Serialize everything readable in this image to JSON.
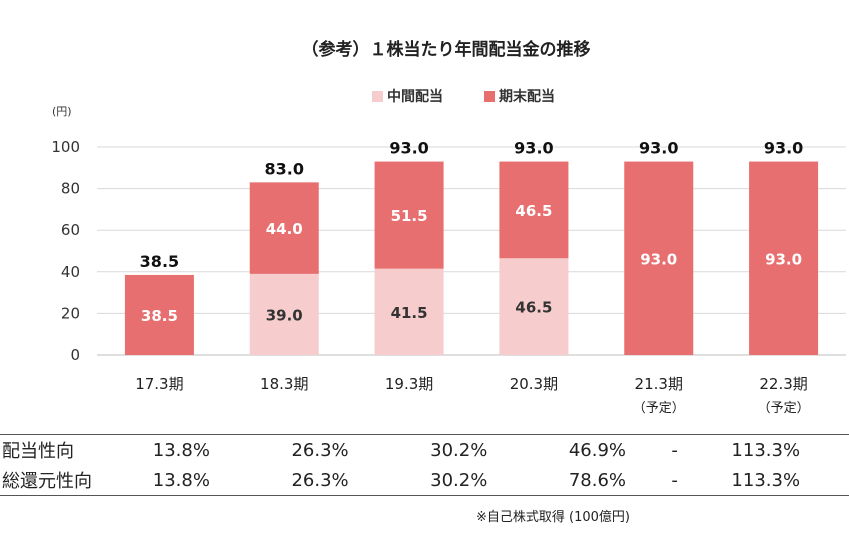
{
  "chart_data": {
    "type": "bar",
    "stacked": true,
    "title": "（参考）１株当たり年間配当金の推移",
    "unit": "(円)",
    "ylim": [
      0,
      100
    ],
    "yticks": [
      0,
      20,
      40,
      60,
      80,
      100
    ],
    "legend_position": "top",
    "categories": [
      "17.3期",
      "18.3期",
      "19.3期",
      "20.3期",
      "21.3期",
      "22.3期"
    ],
    "category_notes": [
      "",
      "",
      "",
      "",
      "（予定）",
      "（予定）"
    ],
    "series": [
      {
        "name": "中間配当",
        "color": "#f6cccc",
        "values": [
          0,
          39.0,
          41.5,
          46.5,
          0,
          0
        ],
        "labels": [
          "",
          "39.0",
          "41.5",
          "46.5",
          "",
          ""
        ]
      },
      {
        "name": "期末配当",
        "color": "#e86f6f",
        "values": [
          38.5,
          44.0,
          51.5,
          46.5,
          93.0,
          93.0
        ],
        "labels": [
          "38.5",
          "44.0",
          "51.5",
          "46.5",
          "93.0",
          "93.0"
        ]
      }
    ],
    "totals": [
      "38.5",
      "83.0",
      "93.0",
      "93.0",
      "93.0",
      "93.0"
    ]
  },
  "table": {
    "rows": [
      {
        "label": "配当性向",
        "values": [
          "13.8%",
          "26.3%",
          "30.2%",
          "46.9%",
          "-",
          "113.3%"
        ]
      },
      {
        "label": "総還元性向",
        "values": [
          "13.8%",
          "26.3%",
          "30.2%",
          "78.6%",
          "-",
          "113.3%"
        ]
      }
    ]
  },
  "note": "※自己株式取得 (100億円)"
}
